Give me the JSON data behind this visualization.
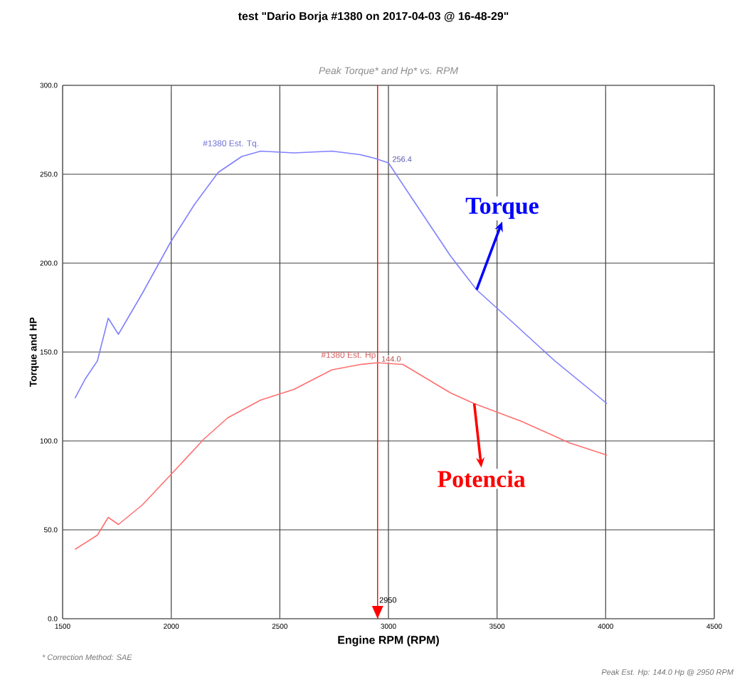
{
  "chart_data": {
    "type": "line",
    "title": "test \"Dario Borja #1380 on 2017-04-03 @ 16-48-29\"",
    "subtitle": "Peak Torque* and Hp* vs. RPM",
    "xlabel": "Engine RPM (RPM)",
    "ylabel": "Torque and HP",
    "xlim": [
      1500,
      4500
    ],
    "xticks": [
      1500,
      2000,
      2500,
      3000,
      3500,
      4000,
      4500
    ],
    "ylim": [
      0,
      300
    ],
    "yticks": [
      {
        "value": 0,
        "label": "0.0"
      },
      {
        "value": 50,
        "label": "50.0"
      },
      {
        "value": 100,
        "label": "100.0"
      },
      {
        "value": 150,
        "label": "150.0"
      },
      {
        "value": 200,
        "label": "200.0"
      },
      {
        "value": 250,
        "label": "250.0"
      },
      {
        "value": 300,
        "label": "300.0"
      }
    ],
    "grid": true,
    "series": [
      {
        "name": "#1380 Est. Tq.",
        "color": "#8080ff",
        "x": [
          1557,
          1605,
          1660,
          1710,
          1757,
          1867,
          1998,
          2107,
          2216,
          2325,
          2412,
          2565,
          2740,
          2871,
          2936,
          3000,
          3111,
          3286,
          3406,
          3569,
          3766,
          4006
        ],
        "values": [
          124,
          135,
          145,
          169,
          160,
          183,
          212,
          233,
          251,
          260,
          263,
          262,
          263,
          261,
          259,
          256.4,
          236,
          204,
          185,
          167,
          145,
          121
        ],
        "value_labels": [
          null,
          null,
          null,
          null,
          null,
          null,
          null,
          null,
          null,
          null,
          null,
          null,
          null,
          null,
          null,
          "256.4",
          null,
          null,
          null,
          null,
          null,
          null
        ]
      },
      {
        "name": "#1380 Est. Hp",
        "color": "#ff7070",
        "x": [
          1557,
          1660,
          1710,
          1757,
          1867,
          1998,
          2150,
          2260,
          2412,
          2565,
          2740,
          2871,
          2950,
          3067,
          3286,
          3395,
          3613,
          3831,
          4006
        ],
        "values": [
          39,
          47,
          57,
          53,
          64,
          81,
          101,
          113,
          123,
          129,
          140,
          143,
          144.0,
          143,
          127,
          121,
          111,
          99,
          92
        ],
        "value_labels": [
          null,
          null,
          null,
          null,
          null,
          null,
          null,
          null,
          null,
          null,
          null,
          null,
          "144.0",
          null,
          null,
          null,
          null,
          null,
          null
        ]
      }
    ],
    "ref_lines": [
      {
        "axis": "x",
        "value": 2950,
        "label": "2950",
        "color": "#ff0000"
      }
    ],
    "annotations": [
      {
        "text": "Torque",
        "x": 3406,
        "y": 185
      },
      {
        "text": "Potencia",
        "x": 3395,
        "y": 121
      },
      "* Correction Method: SAE",
      "Peak Est. Hp: 144.0 Hp @ 2950 RPM"
    ]
  }
}
